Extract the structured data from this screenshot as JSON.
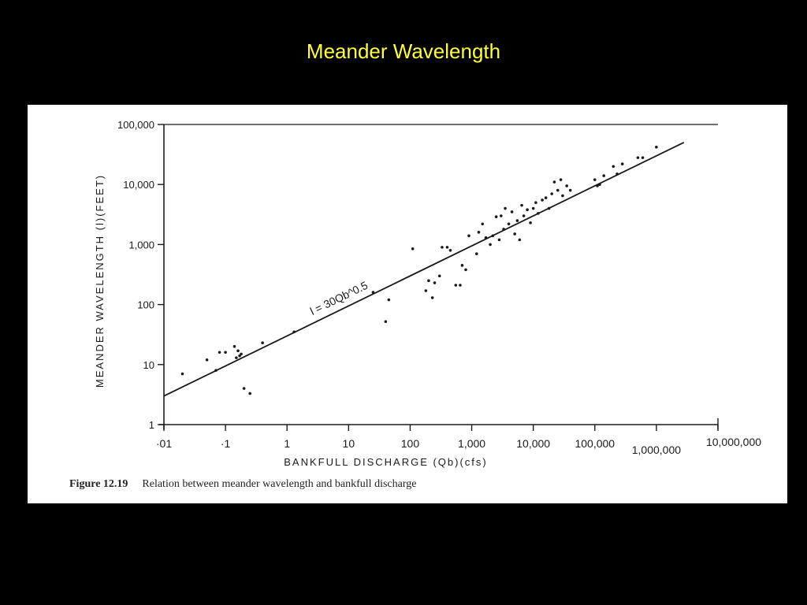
{
  "slide": {
    "title": "Meander Wavelength",
    "background_color": "#000000",
    "title_color": "#ffff33"
  },
  "figure": {
    "caption_number": "Figure 12.19",
    "caption_text": "Relation between meander wavelength and bankfull discharge"
  },
  "chart_data": {
    "type": "scatter",
    "title": "Meander Wavelength",
    "xlabel": "BANKFULL DISCHARGE (Qb)(cfs)",
    "ylabel": "MEANDER WAVELENGTH (l)(FEET)",
    "xscale": "log",
    "yscale": "log",
    "xlim": [
      0.01,
      10000000
    ],
    "ylim": [
      1,
      100000
    ],
    "x_tick_labels": [
      "·01",
      "·1",
      "1",
      "10",
      "100",
      "1,000",
      "10,000",
      "100,000",
      "1,000,000",
      "10,000,000"
    ],
    "x_tick_values": [
      0.01,
      0.1,
      1,
      10,
      100,
      1000,
      10000,
      100000,
      1000000,
      10000000
    ],
    "y_tick_labels": [
      "1",
      "10",
      "100",
      "1,000",
      "10,000",
      "100,000"
    ],
    "y_tick_values": [
      1,
      10,
      100,
      1000,
      10000,
      100000
    ],
    "grid": false,
    "fit_line": {
      "label": "l = 30Qb^0.5",
      "equation": "l = 30 * Qb^0.5",
      "x_range": [
        0.01,
        2800000
      ]
    },
    "series": [
      {
        "name": "observations",
        "points": [
          [
            0.02,
            7
          ],
          [
            0.05,
            12
          ],
          [
            0.07,
            8
          ],
          [
            0.08,
            16
          ],
          [
            0.1,
            16
          ],
          [
            0.14,
            20
          ],
          [
            0.15,
            13
          ],
          [
            0.16,
            17
          ],
          [
            0.17,
            14
          ],
          [
            0.18,
            15
          ],
          [
            0.2,
            4
          ],
          [
            0.25,
            3.3
          ],
          [
            0.4,
            23
          ],
          [
            1.3,
            35
          ],
          [
            25,
            160
          ],
          [
            40,
            52
          ],
          [
            45,
            120
          ],
          [
            110,
            850
          ],
          [
            180,
            170
          ],
          [
            200,
            250
          ],
          [
            230,
            130
          ],
          [
            250,
            230
          ],
          [
            300,
            300
          ],
          [
            330,
            900
          ],
          [
            400,
            900
          ],
          [
            450,
            800
          ],
          [
            550,
            210
          ],
          [
            650,
            210
          ],
          [
            700,
            450
          ],
          [
            800,
            380
          ],
          [
            900,
            1400
          ],
          [
            1200,
            700
          ],
          [
            1300,
            1600
          ],
          [
            1500,
            2200
          ],
          [
            1700,
            1300
          ],
          [
            2000,
            1000
          ],
          [
            2200,
            1400
          ],
          [
            2500,
            2900
          ],
          [
            2800,
            1200
          ],
          [
            3000,
            3000
          ],
          [
            3300,
            1800
          ],
          [
            3500,
            4000
          ],
          [
            4000,
            2200
          ],
          [
            4500,
            3500
          ],
          [
            5000,
            1500
          ],
          [
            5500,
            2500
          ],
          [
            6000,
            1200
          ],
          [
            6500,
            4500
          ],
          [
            7000,
            3000
          ],
          [
            8000,
            3800
          ],
          [
            9000,
            2300
          ],
          [
            10000,
            4000
          ],
          [
            11000,
            5000
          ],
          [
            12000,
            3300
          ],
          [
            14000,
            5500
          ],
          [
            16000,
            6000
          ],
          [
            18000,
            4000
          ],
          [
            20000,
            7000
          ],
          [
            22000,
            11000
          ],
          [
            25000,
            8000
          ],
          [
            28000,
            12000
          ],
          [
            30000,
            6500
          ],
          [
            35000,
            9500
          ],
          [
            40000,
            8000
          ],
          [
            100000,
            12000
          ],
          [
            110000,
            9500
          ],
          [
            120000,
            10000
          ],
          [
            140000,
            14000
          ],
          [
            200000,
            20000
          ],
          [
            230000,
            15000
          ],
          [
            280000,
            22000
          ],
          [
            500000,
            28000
          ],
          [
            600000,
            28000
          ],
          [
            1000000,
            42000
          ]
        ]
      }
    ],
    "legend": null
  }
}
